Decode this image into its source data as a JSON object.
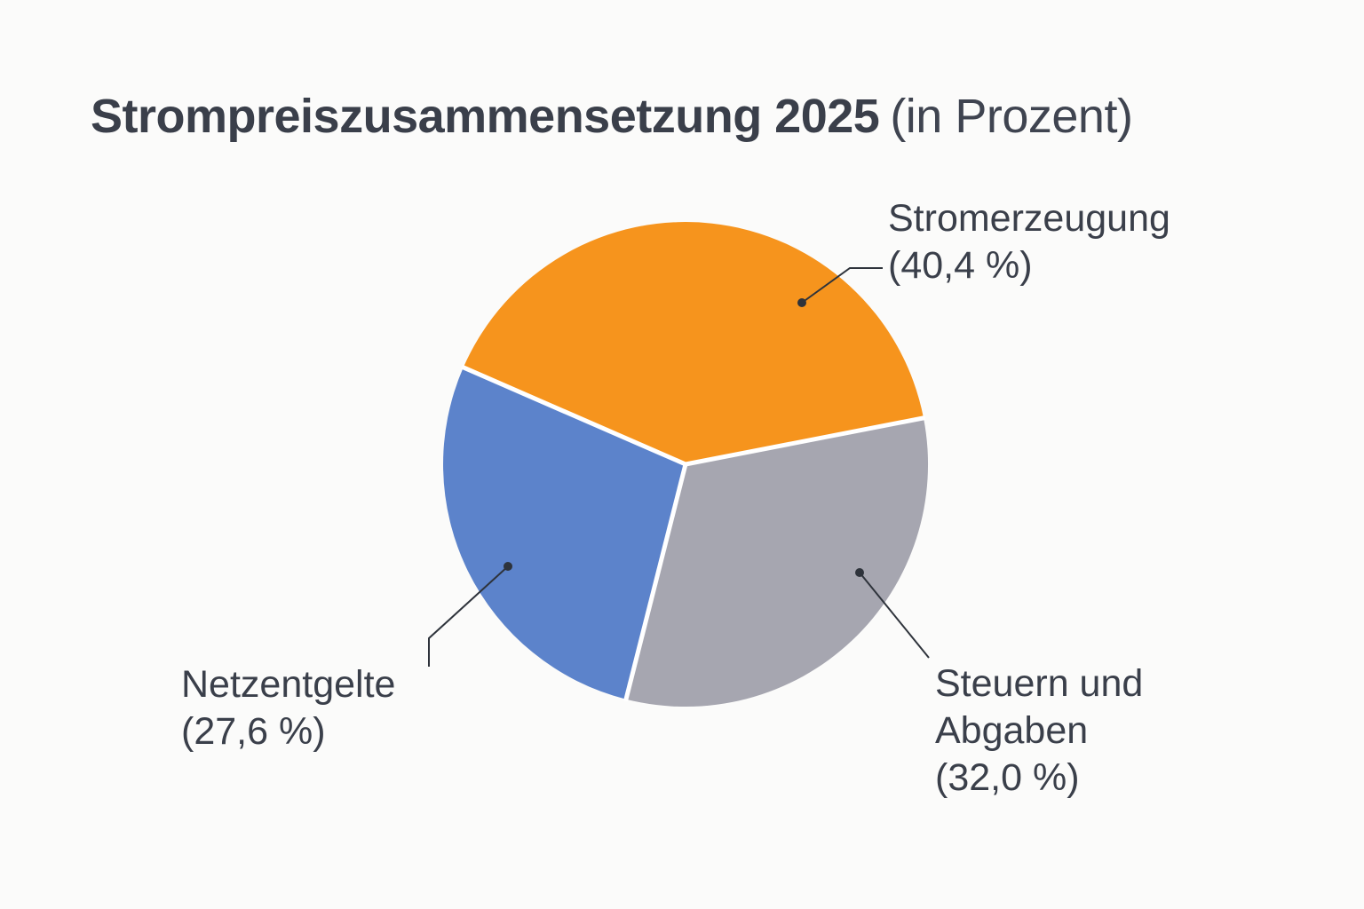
{
  "page": {
    "background": "#FBFBFA"
  },
  "title": {
    "main": "Strompreiszusammensetzung 2025",
    "suffix": "(in Prozent)"
  },
  "colors": {
    "text": "#3A3F4A",
    "leader_lines": "#2E333B",
    "slice_separator": "#FFFFFF",
    "background": "#FBFBFA"
  },
  "chart_data": {
    "type": "pie",
    "title": "Strompreiszusammensetzung 2025",
    "subtitle": "(in Prozent)",
    "unit": "%",
    "total": 100,
    "rotation_deg": 11,
    "legend_position": "callout-labels",
    "slices": [
      {
        "label": "Stromerzeugung",
        "value": 40.4,
        "value_label": "(40,4 %)",
        "color": "#F6941D"
      },
      {
        "label": "Netzentgelte",
        "value": 27.6,
        "value_label": "(27,6 %)",
        "color": "#5C83CB"
      },
      {
        "label": "Steuern und Abgaben",
        "value": 32.0,
        "value_label": "(32,0 %)",
        "color": "#A6A6B0"
      }
    ]
  }
}
